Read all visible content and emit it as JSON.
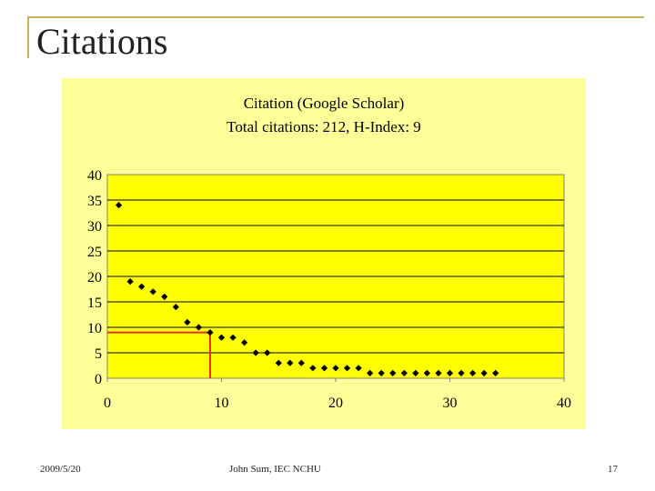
{
  "slide": {
    "title": "Citations",
    "footer_date": "2009/5/20",
    "footer_author": "John Sum, IEC NCHU",
    "page_number": "17"
  },
  "colors": {
    "panel_bg": "#ffff99",
    "plot_bg": "#ffff00",
    "marker": "#000000",
    "h_index_line": "#e03030",
    "accent_bars": "#c7b25f"
  },
  "chart_data": {
    "type": "scatter",
    "title": "Citation (Google Scholar)",
    "subtitle": "Total citations: 212, H-Index: 9",
    "xlabel": "",
    "ylabel": "",
    "xlim": [
      0,
      40
    ],
    "ylim": [
      0,
      40
    ],
    "x_ticks": [
      "0",
      "10",
      "20",
      "30",
      "40"
    ],
    "y_ticks": [
      "40",
      "35",
      "30",
      "25",
      "20",
      "15",
      "10",
      "5",
      "0"
    ],
    "grid": "horizontal",
    "legend": "none",
    "h_index": 9,
    "series": [
      {
        "x": [
          1,
          2,
          3,
          4,
          5,
          6,
          7,
          8,
          9,
          10,
          11,
          12,
          13,
          14,
          15,
          16,
          17,
          18,
          19,
          20,
          21,
          22,
          23,
          24,
          25,
          26,
          27,
          28,
          29,
          30,
          31,
          32,
          33,
          34
        ],
        "y": [
          34,
          19,
          18,
          17,
          16,
          14,
          11,
          10,
          9,
          8,
          8,
          7,
          5,
          5,
          3,
          3,
          3,
          2,
          2,
          2,
          2,
          2,
          1,
          1,
          1,
          1,
          1,
          1,
          1,
          1,
          1,
          1,
          1,
          1
        ]
      }
    ]
  }
}
